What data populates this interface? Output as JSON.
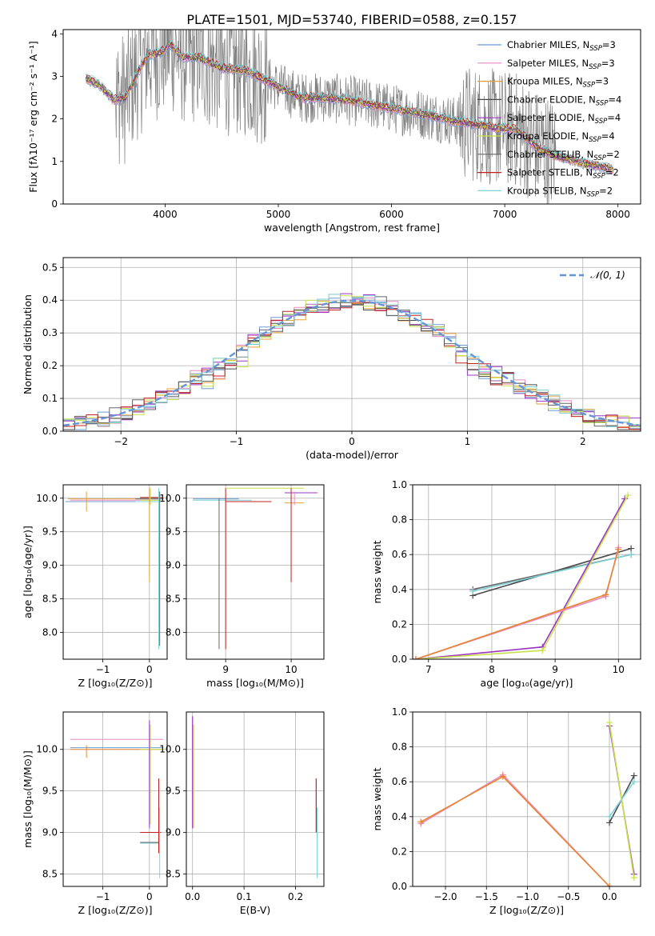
{
  "figure": {
    "title": "PLATE=1501, MJD=53740, FIBERID=0588, z=0.157"
  },
  "colors": {
    "chabrier_miles": "#6b9bd1",
    "salpeter_miles": "#e78ac3",
    "kroupa_miles": "#e5a13b",
    "chabrier_elodie": "#4a4a4a",
    "salpeter_elodie": "#9c35c2",
    "kroupa_elodie": "#c8e04a",
    "chabrier_stelib": "#666666",
    "salpeter_stelib": "#c0211f",
    "kroupa_stelib": "#7fd3d8",
    "data": "#808080",
    "normal": "#6495d8",
    "weight_orange": "#e9842e",
    "grid": "#b0b0b0"
  },
  "chart_data": [
    {
      "id": "spectrum",
      "type": "line",
      "title": "PLATE=1501, MJD=53740, FIBERID=0588, z=0.157",
      "xlabel": "wavelength [Angstrom, rest frame]",
      "ylabel": "Flux [fλ10⁻¹⁷ erg cm⁻² s⁻¹ A⁻¹]",
      "xlim": [
        3100,
        8200
      ],
      "ylim": [
        0,
        4.1
      ],
      "xticks": [
        4000,
        5000,
        6000,
        7000,
        8000
      ],
      "yticks": [
        0,
        1,
        2,
        3,
        4
      ],
      "grid": false,
      "legend_position": "top-right",
      "legend": [
        "Chabrier MILES, N_SSP=3",
        "Salpeter MILES, N_SSP=3",
        "Kroupa MILES, N_SSP=3",
        "Chabrier ELODIE, N_SSP=4",
        "Salpeter ELODIE, N_SSP=4",
        "Kroupa ELODIE, N_SSP=4",
        "Chabrier STELIB, N_SSP=2",
        "Salpeter STELIB, N_SSP=2",
        "Kroupa STELIB, N_SSP=2"
      ],
      "model_continuum": {
        "wavelength": [
          3300,
          3420,
          3550,
          3650,
          3750,
          3850,
          3950,
          4050,
          4150,
          4300,
          4500,
          4700,
          4861,
          5000,
          5200,
          5400,
          5600,
          5800,
          6000,
          6200,
          6400,
          6563,
          6700,
          6900,
          7100,
          7300,
          7500,
          7700,
          7950
        ],
        "flux": [
          2.95,
          2.8,
          2.45,
          2.5,
          3.05,
          3.5,
          3.55,
          3.75,
          3.45,
          3.45,
          3.2,
          3.15,
          2.95,
          2.75,
          2.5,
          2.5,
          2.45,
          2.35,
          2.25,
          2.15,
          2.05,
          1.95,
          1.9,
          1.8,
          1.75,
          1.3,
          1.1,
          0.95,
          0.82
        ]
      }
    },
    {
      "id": "residuals",
      "type": "line",
      "xlabel": "(data-model)/error",
      "ylabel": "Normed distribution",
      "xlim": [
        -2.5,
        2.5
      ],
      "ylim": [
        0,
        0.53
      ],
      "xticks": [
        -2,
        -1,
        0,
        1,
        2
      ],
      "yticks": [
        0.0,
        0.1,
        0.2,
        0.3,
        0.4,
        0.5
      ],
      "grid": true,
      "legend_position": "top-right",
      "legend": [
        "𝒩(0, 1)"
      ],
      "normal_curve": {
        "mean": 0,
        "sigma": 1
      }
    },
    {
      "id": "age_vs_Z",
      "type": "scatter",
      "xlabel": "Z [log₁₀(Z/Z⊙)]",
      "ylabel": "age  [log₁₀(age/yr)]",
      "xlim": [
        -1.85,
        0.38
      ],
      "ylim": [
        7.6,
        10.2
      ],
      "xticks": [
        -1,
        0
      ],
      "yticks": [
        8.0,
        8.5,
        9.0,
        9.5,
        10.0
      ],
      "grid": true
    },
    {
      "id": "age_vs_mass",
      "type": "scatter",
      "xlabel": "mass [log₁₀(M/M⊙)]",
      "ylabel": "",
      "xlim": [
        8.4,
        10.5
      ],
      "ylim": [
        7.6,
        10.2
      ],
      "xticks": [
        9,
        10
      ],
      "yticks": [
        8.0,
        8.5,
        9.0,
        9.5,
        10.0
      ],
      "grid": true
    },
    {
      "id": "weight_vs_age",
      "type": "line",
      "xlabel": "age  [log₁₀(age/yr)]",
      "ylabel": "mass weight",
      "xlim": [
        6.75,
        10.35
      ],
      "ylim": [
        0,
        1.0
      ],
      "xticks": [
        7,
        8,
        9,
        10
      ],
      "yticks": [
        0.0,
        0.2,
        0.4,
        0.6,
        0.8,
        1.0
      ],
      "grid": true,
      "series": [
        {
          "color": "chabrier_elodie",
          "x": [
            7.7,
            10.2
          ],
          "y": [
            0.365,
            0.635
          ]
        },
        {
          "color": "chabrier_stelib",
          "x": [
            7.7,
            10.2
          ],
          "y": [
            0.4,
            0.6
          ]
        },
        {
          "color": "kroupa_stelib",
          "x": [
            7.7,
            10.2
          ],
          "y": [
            0.39,
            0.6
          ]
        },
        {
          "color": "salpeter_elodie",
          "x": [
            6.8,
            8.8,
            10.1
          ],
          "y": [
            0.0,
            0.07,
            0.92
          ]
        },
        {
          "color": "kroupa_elodie",
          "x": [
            6.8,
            8.8,
            10.15
          ],
          "y": [
            0.0,
            0.05,
            0.94
          ]
        },
        {
          "color": "salpeter_miles",
          "x": [
            6.8,
            9.8,
            10.0
          ],
          "y": [
            0.0,
            0.36,
            0.64
          ]
        },
        {
          "color": "weight_orange",
          "x": [
            6.8,
            9.8,
            10.0
          ],
          "y": [
            0.0,
            0.37,
            0.63
          ]
        }
      ]
    },
    {
      "id": "mass_vs_Z",
      "type": "scatter",
      "xlabel": "Z [log₁₀(Z/Z⊙)]",
      "ylabel": "mass [log₁₀(M/M⊙)]",
      "xlim": [
        -1.85,
        0.38
      ],
      "ylim": [
        8.35,
        10.45
      ],
      "xticks": [
        -1,
        0
      ],
      "yticks": [
        8.5,
        9.0,
        9.5,
        10.0
      ],
      "grid": true
    },
    {
      "id": "mass_vs_ebv",
      "type": "scatter",
      "xlabel": "E(B-V)",
      "ylabel": "",
      "xlim": [
        -0.012,
        0.255
      ],
      "ylim": [
        8.35,
        10.45
      ],
      "xticks": [
        0.0,
        0.1,
        0.2
      ],
      "yticks": [
        8.5,
        9.0,
        9.5,
        10.0
      ],
      "grid": true
    },
    {
      "id": "weight_vs_Z",
      "type": "line",
      "xlabel": "Z [log₁₀(Z/Z⊙)]",
      "ylabel": "mass weight",
      "xlim": [
        -2.4,
        0.38
      ],
      "ylim": [
        0,
        1.0
      ],
      "xticks": [
        -2.0,
        -1.5,
        -1.0,
        -0.5,
        0.0
      ],
      "yticks": [
        0.0,
        0.2,
        0.4,
        0.6,
        0.8,
        1.0
      ],
      "grid": true,
      "series": [
        {
          "color": "salpeter_miles",
          "x": [
            -2.3,
            -1.3,
            0.0
          ],
          "y": [
            0.36,
            0.64,
            0.0
          ]
        },
        {
          "color": "weight_orange",
          "x": [
            -2.3,
            -1.3,
            0.0
          ],
          "y": [
            0.37,
            0.63,
            0.0
          ]
        },
        {
          "color": "chabrier_elodie",
          "x": [
            0.0,
            0.3
          ],
          "y": [
            0.365,
            0.635
          ]
        },
        {
          "color": "kroupa_stelib",
          "x": [
            0.0,
            0.3
          ],
          "y": [
            0.4,
            0.6
          ]
        },
        {
          "color": "salpeter_elodie",
          "x": [
            0.0,
            0.3
          ],
          "y": [
            0.92,
            0.07
          ]
        },
        {
          "color": "kroupa_elodie",
          "x": [
            0.0,
            0.3
          ],
          "y": [
            0.94,
            0.05
          ]
        }
      ]
    }
  ]
}
